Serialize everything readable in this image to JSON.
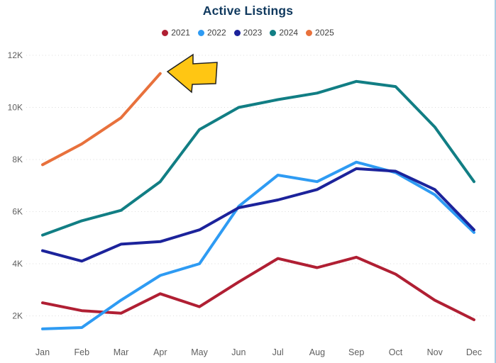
{
  "chart_data": {
    "type": "line",
    "title": "Active Listings",
    "categories": [
      "Jan",
      "Feb",
      "Mar",
      "Apr",
      "May",
      "Jun",
      "Jul",
      "Aug",
      "Sep",
      "Oct",
      "Nov",
      "Dec"
    ],
    "y_ticks": [
      "2K",
      "4K",
      "6K",
      "8K",
      "10K",
      "12K"
    ],
    "y_tick_values": [
      2,
      4,
      6,
      8,
      10,
      12
    ],
    "unit": "K",
    "ylim": [
      1.4,
      12.2
    ],
    "grid": "horizontal-dotted",
    "legend_position": "top-center",
    "title_color": "#10395E",
    "axis_label_color": "#5F5F5F",
    "series": [
      {
        "name": "2021",
        "color": "#B01F33",
        "values": [
          2.5,
          2.2,
          2.1,
          2.85,
          2.35,
          3.3,
          4.2,
          3.85,
          4.25,
          3.6,
          2.6,
          1.85
        ]
      },
      {
        "name": "2022",
        "color": "#2E9BF3",
        "values": [
          1.5,
          1.55,
          2.6,
          3.55,
          4.0,
          6.2,
          7.4,
          7.15,
          7.9,
          7.5,
          6.65,
          5.2
        ]
      },
      {
        "name": "2023",
        "color": "#1C239B",
        "values": [
          4.5,
          4.1,
          4.75,
          4.85,
          5.3,
          6.15,
          6.45,
          6.85,
          7.65,
          7.55,
          6.85,
          5.3
        ]
      },
      {
        "name": "2024",
        "color": "#117E84",
        "values": [
          5.1,
          5.65,
          6.05,
          7.15,
          9.15,
          10.0,
          10.3,
          10.55,
          11.0,
          10.8,
          9.25,
          7.15
        ]
      },
      {
        "name": "2025",
        "color": "#E8713C",
        "values": [
          7.8,
          8.6,
          9.6,
          11.3,
          null,
          null,
          null,
          null,
          null,
          null,
          null,
          null
        ]
      }
    ],
    "annotation": {
      "type": "left-arrow",
      "color": "#FFC613",
      "outline": "#1F1F1F",
      "points_at": "2025 Apr endpoint"
    }
  }
}
